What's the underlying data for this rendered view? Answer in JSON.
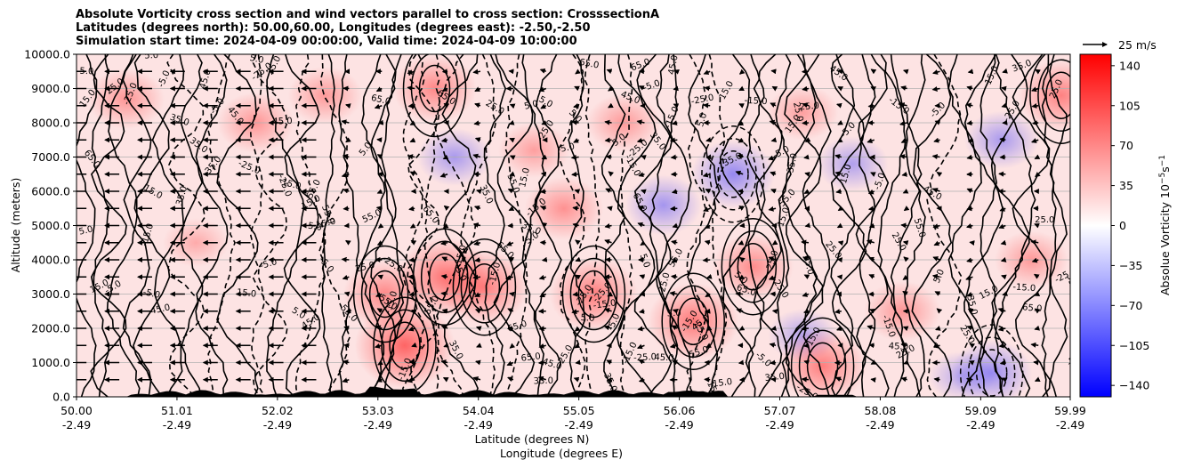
{
  "title": {
    "line1": "Absolute Vorticity cross section and wind vectors parallel to cross section: CrosssectionA",
    "line2": "Latitudes (degrees north): 50.00,60.00, Longitudes (degrees east): -2.50,-2.50",
    "line3": "Simulation start time: 2024-04-09 00:00:00, Valid time: 2024-04-09 10:00:00"
  },
  "colors": {
    "positive": "#ff0000",
    "negative": "#0000ff",
    "neutral": "#ffffff",
    "contour": "#000000",
    "terrain": "#000000",
    "grid": "#b0b0b0"
  },
  "chart_data": {
    "type": "heatmap",
    "subtype": "cross-section contourf with contour lines and wind vectors",
    "xlabel": "Latitude (degrees N)",
    "xlabel2": "Longitude (degrees E)",
    "ylabel": "Altitude (meters)",
    "ylim": [
      0,
      10000
    ],
    "y_ticks": [
      "0.0",
      "1000.0",
      "2000.0",
      "3000.0",
      "4000.0",
      "5000.0",
      "6000.0",
      "7000.0",
      "8000.0",
      "9000.0",
      "10000.0"
    ],
    "y_tick_values": [
      0,
      1000,
      2000,
      3000,
      4000,
      5000,
      6000,
      7000,
      8000,
      9000,
      10000
    ],
    "x_ticks_lat": [
      "50.00",
      "51.01",
      "52.02",
      "53.03",
      "54.04",
      "55.05",
      "56.06",
      "57.07",
      "58.08",
      "59.09",
      "59.99"
    ],
    "x_ticks_lon": [
      "-2.49",
      "-2.49",
      "-2.49",
      "-2.49",
      "-2.49",
      "-2.49",
      "-2.49",
      "-2.49",
      "-2.49",
      "-2.49",
      "-2.49"
    ],
    "x_tick_values": [
      50.0,
      51.01,
      52.02,
      53.03,
      54.04,
      55.05,
      56.06,
      57.07,
      58.08,
      59.09,
      59.99
    ],
    "xlim": [
      50.0,
      59.99
    ],
    "grid": "horizontal",
    "colorbar": {
      "label": "Absolue Vorticity 10$^{-5}$s$^{-1}$",
      "label_main": "Absolue Vorticity 10",
      "label_exp1": "−5",
      "label_mid": "s",
      "label_exp2": "−1",
      "range": [
        -150,
        150
      ],
      "ticks": [
        "140",
        "105",
        "70",
        "35",
        "0",
        "−35",
        "−70",
        "−105",
        "−140"
      ],
      "tick_values": [
        140,
        105,
        70,
        35,
        0,
        -35,
        -70,
        -105,
        -140
      ]
    },
    "quiver_key": {
      "label": "25 m/s",
      "speed": 25
    },
    "contour_labels": [
      "5.0",
      "15.0",
      "25.0",
      "35.0",
      "45.0",
      "55.0",
      "65.0",
      "-5.0",
      "-15.0",
      "-25.0"
    ],
    "vorticity_regions": [
      {
        "lat": 50.5,
        "z": 8700,
        "value": 30
      },
      {
        "lat": 51.2,
        "z": 4500,
        "value": 8
      },
      {
        "lat": 51.8,
        "z": 8000,
        "value": 30
      },
      {
        "lat": 52.5,
        "z": 8800,
        "value": 25
      },
      {
        "lat": 53.1,
        "z": 3000,
        "value": 45
      },
      {
        "lat": 53.3,
        "z": 1500,
        "value": 80
      },
      {
        "lat": 53.6,
        "z": 9000,
        "value": 45
      },
      {
        "lat": 53.8,
        "z": 7000,
        "value": -25
      },
      {
        "lat": 53.7,
        "z": 3500,
        "value": 65
      },
      {
        "lat": 54.1,
        "z": 3200,
        "value": 55
      },
      {
        "lat": 54.6,
        "z": 7200,
        "value": 20
      },
      {
        "lat": 54.9,
        "z": 5500,
        "value": 35
      },
      {
        "lat": 55.2,
        "z": 3000,
        "value": 55
      },
      {
        "lat": 55.5,
        "z": 8000,
        "value": 25
      },
      {
        "lat": 55.9,
        "z": 5600,
        "value": -30
      },
      {
        "lat": 56.2,
        "z": 2200,
        "value": 60
      },
      {
        "lat": 56.6,
        "z": 6500,
        "value": -45
      },
      {
        "lat": 56.8,
        "z": 3800,
        "value": 40
      },
      {
        "lat": 57.3,
        "z": 8300,
        "value": 20
      },
      {
        "lat": 57.3,
        "z": 1800,
        "value": -15
      },
      {
        "lat": 57.5,
        "z": 900,
        "value": 55
      },
      {
        "lat": 57.8,
        "z": 6800,
        "value": -20
      },
      {
        "lat": 58.3,
        "z": 2500,
        "value": 30
      },
      {
        "lat": 58.9,
        "z": 600,
        "value": -10
      },
      {
        "lat": 59.2,
        "z": 700,
        "value": -40
      },
      {
        "lat": 59.3,
        "z": 7500,
        "value": -25
      },
      {
        "lat": 59.6,
        "z": 4000,
        "value": 25
      },
      {
        "lat": 59.9,
        "z": 8800,
        "value": 50
      }
    ]
  }
}
